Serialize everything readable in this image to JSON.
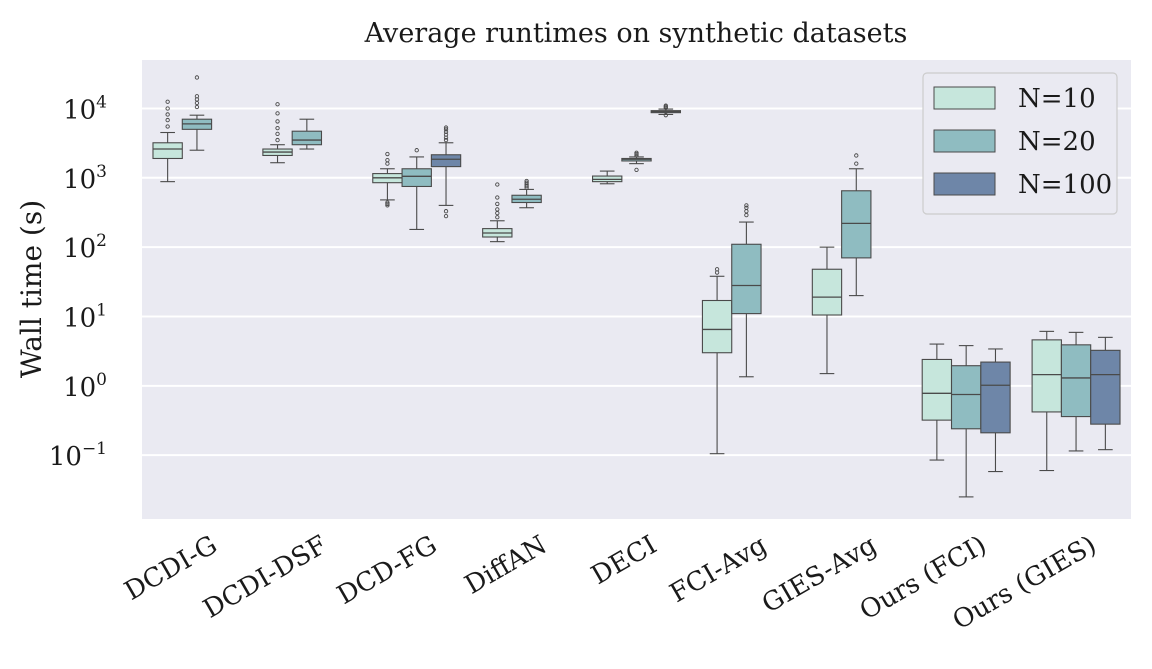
{
  "chart_data": {
    "type": "box",
    "title": "Average runtimes on synthetic datasets",
    "xlabel": "",
    "ylabel": "Wall time (s)",
    "yscale": "log",
    "ylim": [
      0.012,
      50000
    ],
    "grid": true,
    "legend_position": "top-right",
    "categories": [
      "DCDI-G",
      "DCDI-DSF",
      "DCD-FG",
      "DiffAN",
      "DECI",
      "FCI-Avg",
      "GIES-Avg",
      "Ours (FCI)",
      "Ours (GIES)"
    ],
    "y_ticks": [
      {
        "value": 0.1,
        "base": "10",
        "exp": "−1"
      },
      {
        "value": 1,
        "base": "10",
        "exp": "0"
      },
      {
        "value": 10,
        "base": "10",
        "exp": "1"
      },
      {
        "value": 100,
        "base": "10",
        "exp": "2"
      },
      {
        "value": 1000,
        "base": "10",
        "exp": "3"
      },
      {
        "value": 10000,
        "base": "10",
        "exp": "4"
      }
    ],
    "series": [
      {
        "name": "N=10",
        "color": "#c6e6dc",
        "boxes": [
          {
            "category": "DCDI-G",
            "whislo": 880,
            "q1": 1900,
            "med": 2600,
            "q3": 3200,
            "whishi": 4500,
            "fliers": [
              5500,
              6800,
              8200,
              10000,
              12500
            ]
          },
          {
            "category": "DCDI-DSF",
            "whislo": 1650,
            "q1": 2100,
            "med": 2350,
            "q3": 2600,
            "whishi": 3000,
            "fliers": [
              3500,
              4300,
              5200,
              6500,
              8500,
              11500
            ]
          },
          {
            "category": "DCD-FG",
            "whislo": 480,
            "q1": 850,
            "med": 1000,
            "q3": 1150,
            "whishi": 1350,
            "fliers": [
              400,
              420,
              440,
              1600,
              1800,
              2200
            ]
          },
          {
            "category": "DiffAN",
            "whislo": 120,
            "q1": 140,
            "med": 160,
            "q3": 185,
            "whishi": 240,
            "fliers": [
              270,
              310,
              350,
              420,
              520,
              800
            ]
          },
          {
            "category": "DECI",
            "whislo": 820,
            "q1": 880,
            "med": 950,
            "q3": 1060,
            "whishi": 1250,
            "fliers": []
          },
          {
            "category": "FCI-Avg",
            "whislo": 0.105,
            "q1": 3.0,
            "med": 6.5,
            "q3": 17,
            "whishi": 38,
            "fliers": [
              43,
              48
            ]
          },
          {
            "category": "GIES-Avg",
            "whislo": 1.5,
            "q1": 10.5,
            "med": 19,
            "q3": 48,
            "whishi": 100,
            "fliers": []
          },
          {
            "category": "Ours (FCI)",
            "whislo": 0.085,
            "q1": 0.32,
            "med": 0.78,
            "q3": 2.4,
            "whishi": 4.0,
            "fliers": []
          },
          {
            "category": "Ours (GIES)",
            "whislo": 0.06,
            "q1": 0.42,
            "med": 1.45,
            "q3": 4.6,
            "whishi": 6.1,
            "fliers": []
          }
        ]
      },
      {
        "name": "N=20",
        "color": "#8fbcc1",
        "boxes": [
          {
            "category": "DCDI-G",
            "whislo": 2500,
            "q1": 5000,
            "med": 6000,
            "q3": 7000,
            "whishi": 8000,
            "fliers": [
              10500,
              12000,
              13500,
              15000,
              28000
            ]
          },
          {
            "category": "DCDI-DSF",
            "whislo": 2600,
            "q1": 3000,
            "med": 3500,
            "q3": 4700,
            "whishi": 7000,
            "fliers": []
          },
          {
            "category": "DCD-FG",
            "whislo": 180,
            "q1": 750,
            "med": 1050,
            "q3": 1350,
            "whishi": 2000,
            "fliers": [
              2500
            ]
          },
          {
            "category": "DiffAN",
            "whislo": 370,
            "q1": 440,
            "med": 490,
            "q3": 560,
            "whishi": 680,
            "fliers": [
              720,
              760,
              800,
              850,
              900
            ]
          },
          {
            "category": "DECI",
            "whislo": 1600,
            "q1": 1750,
            "med": 1850,
            "q3": 1900,
            "whishi": 2000,
            "fliers": [
              1300,
              2100,
              2200,
              2300
            ]
          },
          {
            "category": "FCI-Avg",
            "whislo": 1.35,
            "q1": 11,
            "med": 28,
            "q3": 110,
            "whishi": 230,
            "fliers": [
              290,
              330,
              370,
              400
            ]
          },
          {
            "category": "GIES-Avg",
            "whislo": 20,
            "q1": 70,
            "med": 220,
            "q3": 650,
            "whishi": 1350,
            "fliers": [
              1600,
              2100
            ]
          },
          {
            "category": "Ours (FCI)",
            "whislo": 0.025,
            "q1": 0.24,
            "med": 0.75,
            "q3": 1.95,
            "whishi": 3.8,
            "fliers": []
          },
          {
            "category": "Ours (GIES)",
            "whislo": 0.115,
            "q1": 0.36,
            "med": 1.3,
            "q3": 3.9,
            "whishi": 5.9,
            "fliers": []
          }
        ]
      },
      {
        "name": "N=100",
        "color": "#6e86a8",
        "boxes": [
          {
            "category": "DCDI-G",
            "missing": true
          },
          {
            "category": "DCDI-DSF",
            "missing": true
          },
          {
            "category": "DCD-FG",
            "whislo": 400,
            "q1": 1450,
            "med": 1850,
            "q3": 2150,
            "whishi": 3200,
            "fliers": [
              280,
              330,
              3500,
              3800,
              4200,
              4600,
              5000,
              5300
            ]
          },
          {
            "category": "DiffAN",
            "missing": true
          },
          {
            "category": "DECI",
            "whislo": 8200,
            "q1": 8700,
            "med": 9000,
            "q3": 9300,
            "whishi": 9800,
            "fliers": [
              8000,
              10200,
              10600,
              11000
            ]
          },
          {
            "category": "FCI-Avg",
            "missing": true
          },
          {
            "category": "GIES-Avg",
            "missing": true
          },
          {
            "category": "Ours (FCI)",
            "whislo": 0.058,
            "q1": 0.21,
            "med": 1.02,
            "q3": 2.2,
            "whishi": 3.4,
            "fliers": []
          },
          {
            "category": "Ours (GIES)",
            "whislo": 0.12,
            "q1": 0.28,
            "med": 1.45,
            "q3": 3.25,
            "whishi": 5.0,
            "fliers": []
          }
        ]
      }
    ]
  }
}
